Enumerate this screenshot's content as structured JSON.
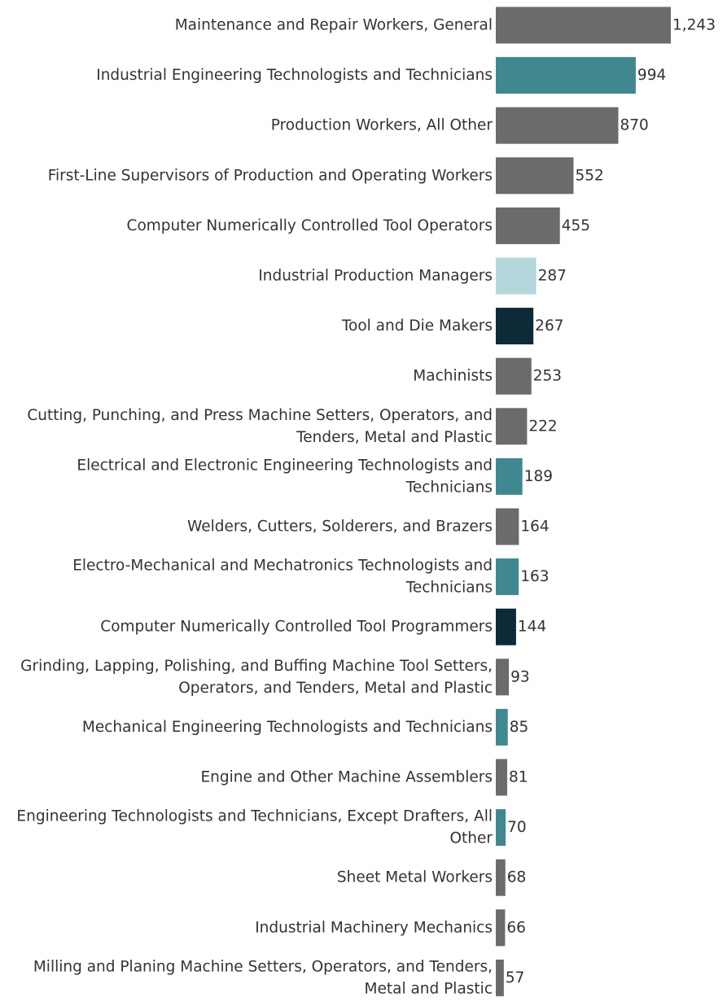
{
  "chart_data": {
    "type": "bar",
    "orientation": "horizontal",
    "title": "",
    "xlabel": "",
    "ylabel": "",
    "grid": false,
    "xlim": [
      0,
      1243
    ],
    "categories": [
      "Maintenance and Repair Workers, General",
      "Industrial Engineering Technologists and Technicians",
      "Production Workers, All Other",
      "First-Line Supervisors of Production and Operating Workers",
      "Computer Numerically Controlled Tool Operators",
      "Industrial Production Managers",
      "Tool and Die Makers",
      "Machinists",
      "Cutting, Punching, and Press Machine Setters, Operators, and Tenders, Metal and Plastic",
      "Electrical and Electronic Engineering Technologists and Technicians",
      "Welders, Cutters, Solderers, and Brazers",
      "Electro-Mechanical and Mechatronics Technologists and Technicians",
      "Computer Numerically Controlled Tool Programmers",
      "Grinding, Lapping, Polishing, and Buffing Machine Tool Setters, Operators, and Tenders, Metal and Plastic",
      "Mechanical Engineering Technologists and Technicians",
      "Engine and Other Machine Assemblers",
      "Engineering Technologists and Technicians, Except Drafters, All Other",
      "Sheet Metal Workers",
      "Industrial Machinery Mechanics",
      "Milling and Planing Machine Setters, Operators, and Tenders, Metal and Plastic"
    ],
    "label_lines": [
      [
        "Maintenance and Repair Workers, General"
      ],
      [
        "Industrial Engineering Technologists and Technicians"
      ],
      [
        "Production Workers, All Other"
      ],
      [
        "First-Line Supervisors of Production and Operating Workers"
      ],
      [
        "Computer Numerically Controlled Tool Operators"
      ],
      [
        "Industrial Production Managers"
      ],
      [
        "Tool and Die Makers"
      ],
      [
        "Machinists"
      ],
      [
        "Cutting, Punching, and Press Machine Setters, Operators, and",
        "Tenders, Metal and Plastic"
      ],
      [
        "Electrical and Electronic Engineering Technologists and",
        "Technicians"
      ],
      [
        "Welders, Cutters, Solderers, and Brazers"
      ],
      [
        "Electro-Mechanical and Mechatronics Technologists and",
        "Technicians"
      ],
      [
        "Computer Numerically Controlled Tool Programmers"
      ],
      [
        "Grinding, Lapping, Polishing, and Buffing Machine Tool Setters,",
        "Operators, and Tenders, Metal and Plastic"
      ],
      [
        "Mechanical Engineering Technologists and Technicians"
      ],
      [
        "Engine and Other Machine Assemblers"
      ],
      [
        "Engineering Technologists and Technicians, Except Drafters, All",
        "Other"
      ],
      [
        "Sheet Metal Workers"
      ],
      [
        "Industrial Machinery Mechanics"
      ],
      [
        "Milling and Planing Machine Setters, Operators, and Tenders,",
        "Metal and Plastic"
      ]
    ],
    "values": [
      1243,
      994,
      870,
      552,
      455,
      287,
      267,
      253,
      222,
      189,
      164,
      163,
      144,
      93,
      85,
      81,
      70,
      68,
      66,
      57
    ],
    "value_labels": [
      "1,243",
      "994",
      "870",
      "552",
      "455",
      "287",
      "267",
      "253",
      "222",
      "189",
      "164",
      "163",
      "144",
      "93",
      "85",
      "81",
      "70",
      "68",
      "66",
      "57"
    ],
    "bar_colors": [
      "#6b6b6b",
      "#3f8890",
      "#6b6b6b",
      "#6b6b6b",
      "#6b6b6b",
      "#b4d7db",
      "#0c2a37",
      "#6b6b6b",
      "#6b6b6b",
      "#3f8890",
      "#6b6b6b",
      "#3f8890",
      "#0c2a37",
      "#6b6b6b",
      "#3f8890",
      "#6b6b6b",
      "#3f8890",
      "#6b6b6b",
      "#6b6b6b",
      "#6b6b6b"
    ]
  }
}
